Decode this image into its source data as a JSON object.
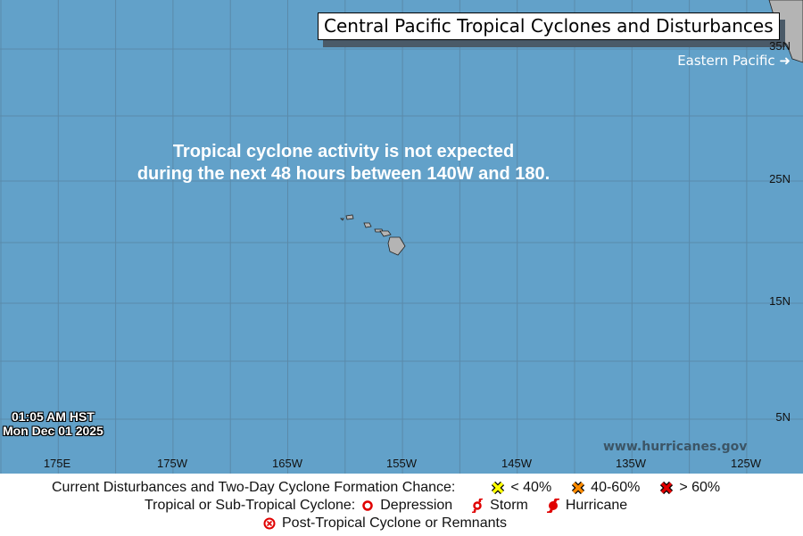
{
  "title": "Central Pacific Tropical Cyclones and Disturbances",
  "eastern_link": "Eastern Pacific",
  "message_line1": "Tropical cyclone activity is not expected",
  "message_line2": "during the next 48 hours between 140W and 180.",
  "timestamp_time": "01:05 AM HST",
  "timestamp_date": "Mon Dec 01 2025",
  "website": "www.hurricanes.gov",
  "lat_labels": [
    "35N",
    "25N",
    "15N",
    "5N"
  ],
  "lon_labels": [
    "175E",
    "175W",
    "165W",
    "155W",
    "145W",
    "135W",
    "125W"
  ],
  "legend": {
    "disturbances_label": "Current Disturbances and Two-Day Cyclone Formation Chance:",
    "low": "< 40%",
    "medium": "40-60%",
    "high": "> 60%",
    "cyclone_label": "Tropical or Sub-Tropical Cyclone:",
    "depression": "Depression",
    "storm": "Storm",
    "hurricane": "Hurricane",
    "post_tropical": "Post-Tropical Cyclone or Remnants"
  },
  "colors": {
    "ocean": "#62a1c9",
    "land": "#b4b4b4",
    "low": "#ffff00",
    "medium": "#ff8c00",
    "high": "#e00000",
    "cyclone": "#e00000"
  }
}
